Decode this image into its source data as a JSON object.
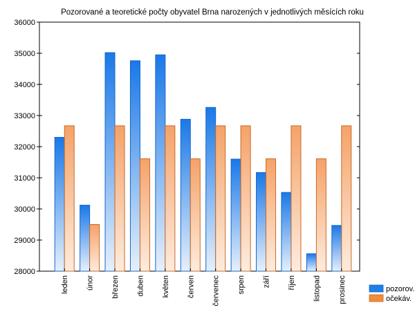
{
  "chart_data": {
    "type": "bar",
    "title": "Pozorované a teoretické počty obyvatel Brna narozených v jednotlivých měsících roku",
    "xlabel": "",
    "ylabel": "",
    "categories": [
      "leden",
      "únor",
      "březen",
      "duben",
      "květen",
      "červen",
      "červenec",
      "srpen",
      "září",
      "říjen",
      "listopad",
      "prosinec"
    ],
    "series": [
      {
        "name": "pozorov.",
        "color": "#1f7fe6",
        "values": [
          32300,
          30120,
          35020,
          34760,
          34950,
          32880,
          33260,
          31600,
          31170,
          30530,
          28560,
          29470
        ]
      },
      {
        "name": "očekáv.",
        "color": "#f08c3c",
        "values": [
          32670,
          29500,
          32670,
          31610,
          32670,
          31610,
          32670,
          32670,
          31610,
          32670,
          31610,
          32670
        ]
      }
    ],
    "ylim": [
      28000,
      36000
    ],
    "yticks": [
      28000,
      29000,
      30000,
      31000,
      32000,
      33000,
      34000,
      35000,
      36000
    ],
    "grid": false,
    "legend": "bottom-right"
  }
}
